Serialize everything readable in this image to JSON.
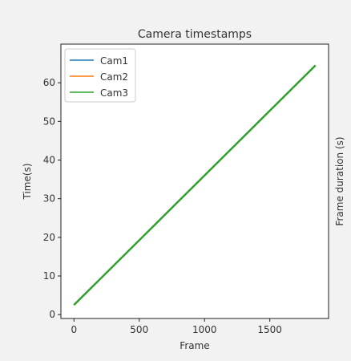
{
  "chart_data": {
    "type": "line",
    "title": "Camera timestamps",
    "xlabel": "Frame",
    "ylabel": "Time(s)",
    "right_ylabel": "Frame duration (s)",
    "footer_text": "",
    "xlim": [
      -100,
      1950
    ],
    "ylim": [
      -1,
      70
    ],
    "xticks": [
      0,
      500,
      1000,
      1500
    ],
    "yticks": [
      0,
      10,
      20,
      30,
      40,
      50,
      60
    ],
    "grid": false,
    "legend": "top-left",
    "series": [
      {
        "name": "Cam1",
        "color": "#1f77b4",
        "x": [
          0,
          1850
        ],
        "y": [
          2.5,
          64.5
        ]
      },
      {
        "name": "Cam2",
        "color": "#ff7f0e",
        "x": [
          0,
          1850
        ],
        "y": [
          2.5,
          64.5
        ]
      },
      {
        "name": "Cam3",
        "color": "#2ca02c",
        "x": [
          0,
          1850
        ],
        "y": [
          2.5,
          64.5
        ]
      }
    ]
  }
}
